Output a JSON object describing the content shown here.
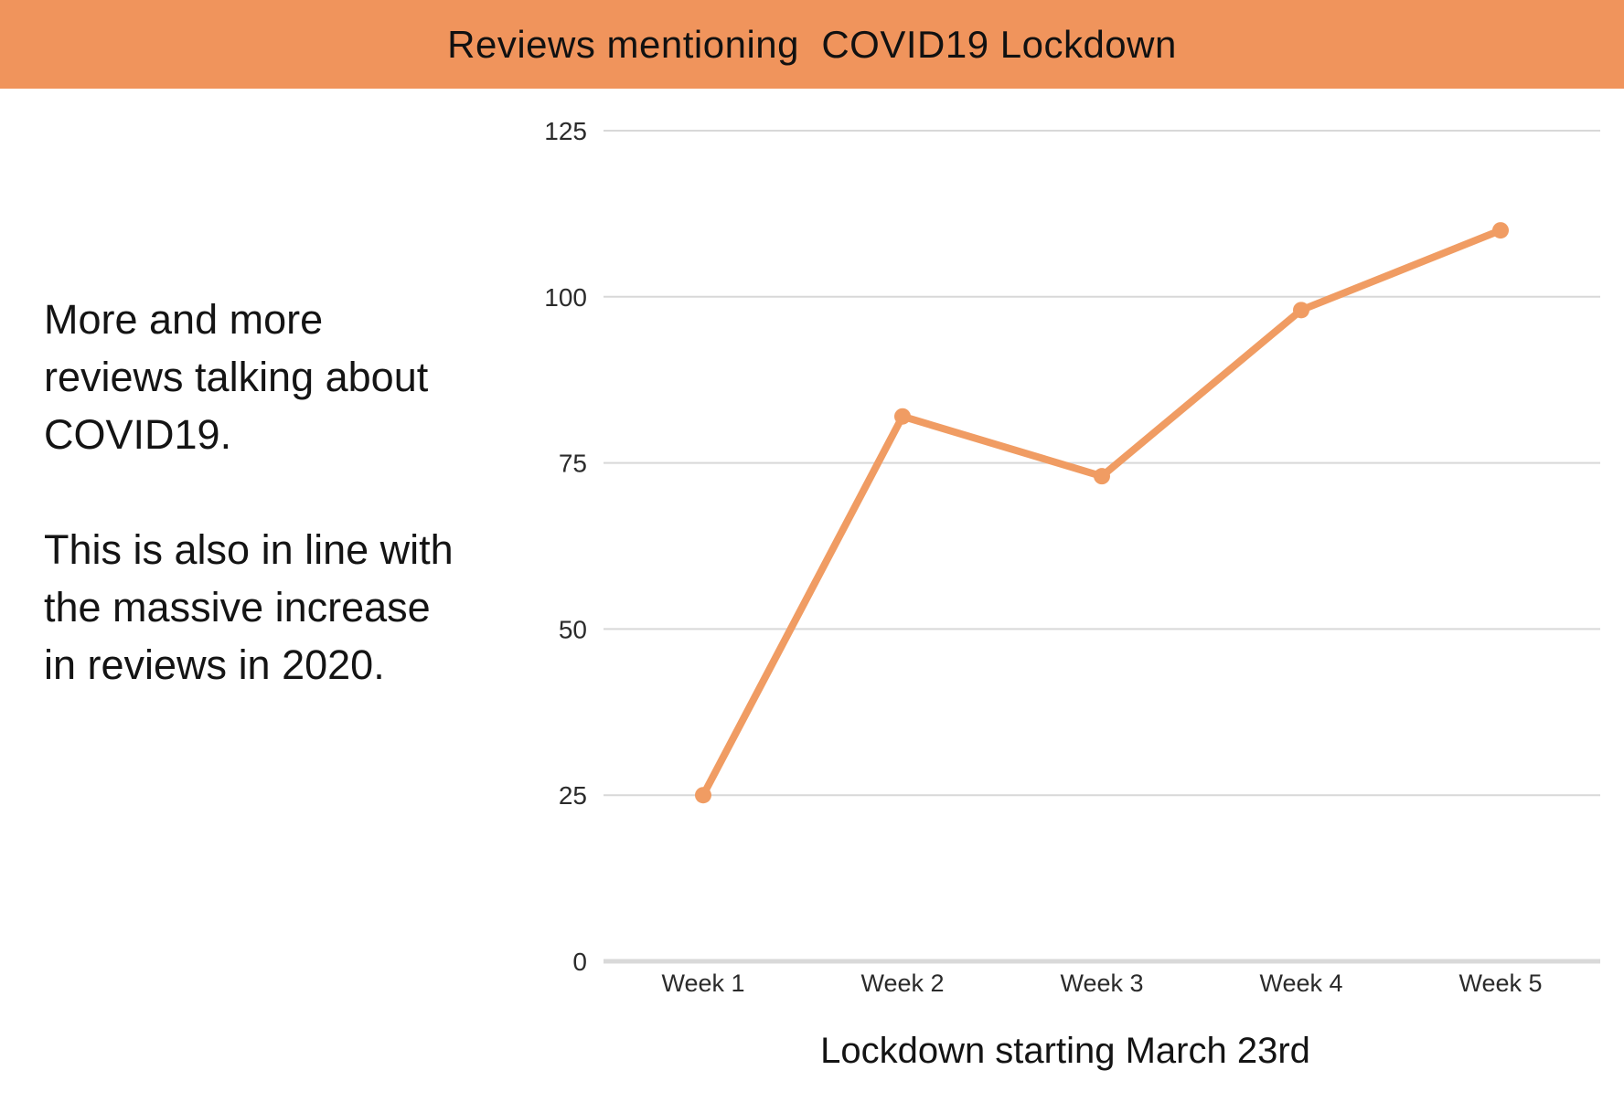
{
  "header": {
    "title": "Reviews mentioning  COVID19 Lockdown",
    "bg_color": "#F0945C"
  },
  "commentary": {
    "paragraph1": "More and more reviews talking about COVID19.",
    "paragraph2": "This is also in line with the massive increase in reviews in 2020."
  },
  "chart_data": {
    "type": "line",
    "categories": [
      "Week 1",
      "Week 2",
      "Week 3",
      "Week 4",
      "Week 5"
    ],
    "values": [
      25,
      82,
      73,
      98,
      110
    ],
    "title": "Reviews mentioning  COVID19 Lockdown",
    "xlabel": "Lockdown starting March 23rd",
    "ylabel": "",
    "ylim": [
      0,
      125
    ],
    "yticks": [
      0,
      25,
      50,
      75,
      100,
      125
    ],
    "grid": true,
    "legend": "none",
    "line_color": "#F09C63",
    "grid_color": "#D8D8D8",
    "axis_color": "#D9D9D9",
    "tick_color": "#2B2B2B",
    "marker": "circle"
  }
}
